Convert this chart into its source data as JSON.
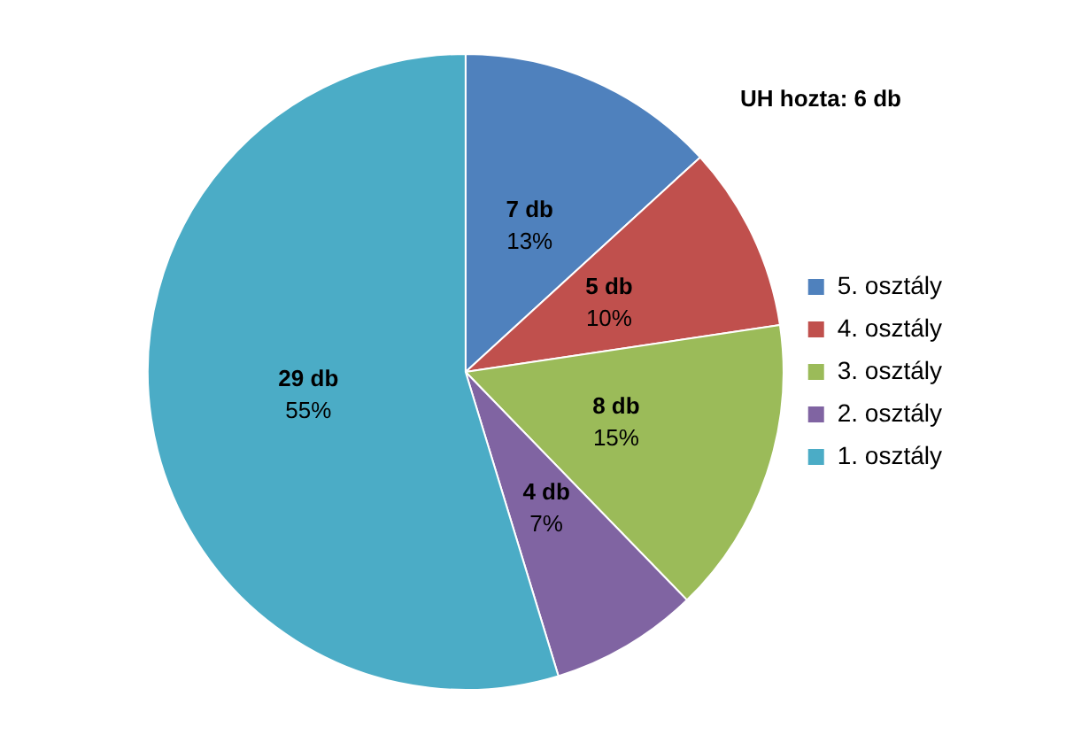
{
  "chart_data": {
    "type": "pie",
    "categories": [
      "5. osztály",
      "4. osztály",
      "3. osztály",
      "2. osztály",
      "1. osztály"
    ],
    "values": [
      7,
      5,
      8,
      4,
      29
    ],
    "colors": [
      "#4f81bd",
      "#c0504d",
      "#9bbb59",
      "#8064a2",
      "#4bacc6"
    ],
    "value_labels": [
      "7 db\n13%",
      "5 db\n10%",
      "8 db\n15%",
      "4 db\n7%",
      "29 db\n55%"
    ],
    "annotations": [
      "UH hozta: 6 db"
    ],
    "legend": "right"
  }
}
